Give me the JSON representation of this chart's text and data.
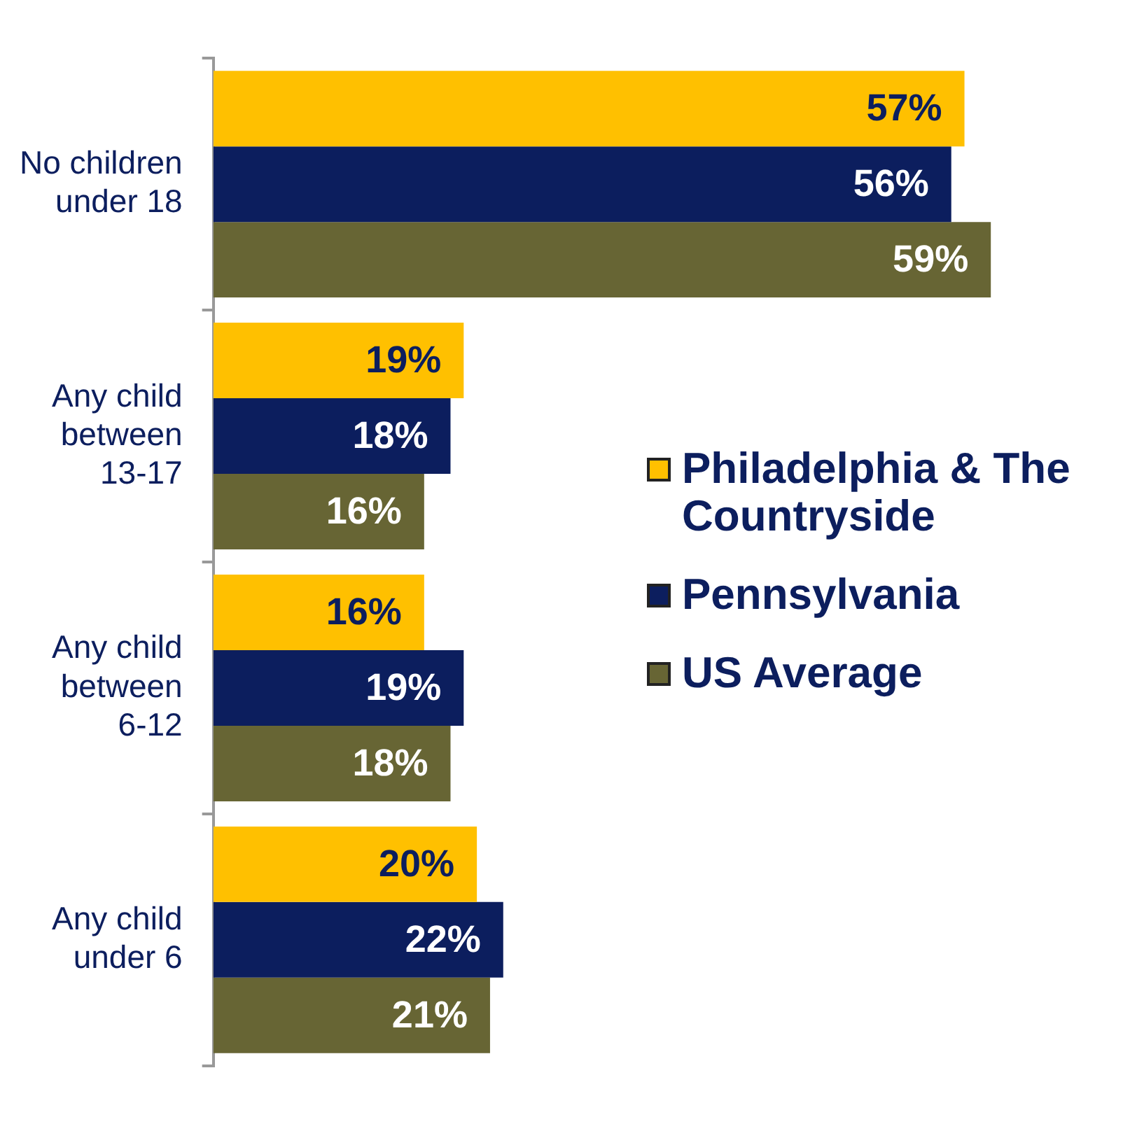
{
  "chart_data": {
    "type": "bar",
    "orientation": "horizontal",
    "categories": [
      "No children under 18",
      "Any child between 13-17",
      "Any child between 6-12",
      "Any child under 6"
    ],
    "series": [
      {
        "name": "Philadelphia & The Countryside",
        "color": "#ffc000",
        "values": [
          57,
          19,
          16,
          20
        ],
        "value_labels": [
          "57%",
          "19%",
          "16%",
          "20%"
        ]
      },
      {
        "name": "Pennsylvania",
        "color": "#0c1e5e",
        "values": [
          56,
          18,
          19,
          22
        ],
        "value_labels": [
          "56%",
          "18%",
          "19%",
          "22%"
        ]
      },
      {
        "name": "US Average",
        "color": "#676534",
        "values": [
          59,
          16,
          18,
          21
        ],
        "value_labels": [
          "59%",
          "16%",
          "18%",
          "21%"
        ]
      }
    ],
    "legend": "right",
    "grid": false,
    "tick_labels": "y"
  }
}
